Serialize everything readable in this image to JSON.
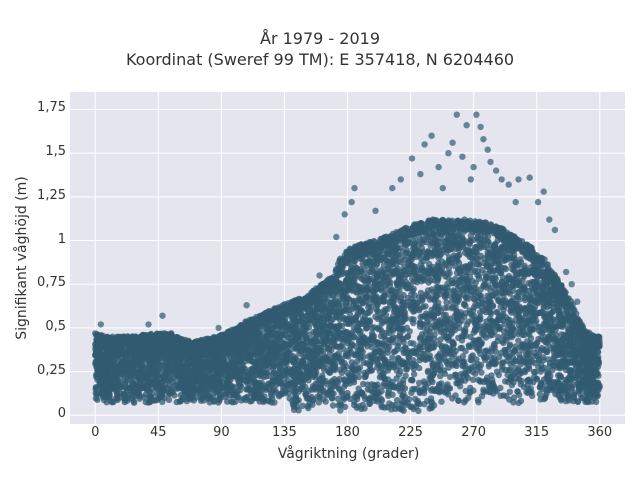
{
  "chart_data": {
    "type": "scatter",
    "title_lines": [
      "År 1979 - 2019",
      "Koordinat (Sweref 99 TM): E 357418, N 6204460"
    ],
    "xlabel": "Vågriktning (grader)",
    "ylabel": "Signifikant våghöjd (m)",
    "xlim": [
      -18,
      378
    ],
    "ylim": [
      -0.05,
      1.85
    ],
    "x_ticks": [
      0,
      45,
      90,
      135,
      180,
      225,
      270,
      315,
      360
    ],
    "x_tick_labels": [
      "0",
      "45",
      "90",
      "135",
      "180",
      "225",
      "270",
      "315",
      "360"
    ],
    "y_ticks": [
      0,
      0.25,
      0.5,
      0.75,
      1,
      1.25,
      1.5,
      1.75
    ],
    "y_tick_labels": [
      "0",
      "0,25",
      "0,5",
      "0,75",
      "1",
      "1,25",
      "1,5",
      "1,75"
    ],
    "grid": true,
    "marker_color": "#325b72",
    "background_color": "#e5e5ef",
    "upper_envelope": {
      "x": [
        0,
        10,
        20,
        30,
        45,
        55,
        60,
        70,
        80,
        90,
        100,
        110,
        120,
        130,
        140,
        150,
        160,
        170,
        175,
        180,
        190,
        200,
        210,
        220,
        230,
        240,
        250,
        260,
        270,
        280,
        290,
        300,
        310,
        320,
        330,
        340,
        345,
        350,
        360
      ],
      "y": [
        0.47,
        0.45,
        0.45,
        0.46,
        0.47,
        0.47,
        0.44,
        0.42,
        0.44,
        0.46,
        0.5,
        0.55,
        0.58,
        0.62,
        0.65,
        0.68,
        0.74,
        0.8,
        0.9,
        0.95,
        0.98,
        1.0,
        1.03,
        1.07,
        1.1,
        1.12,
        1.12,
        1.12,
        1.12,
        1.1,
        1.07,
        1.02,
        0.97,
        0.9,
        0.78,
        0.65,
        0.55,
        0.48,
        0.45
      ]
    },
    "lower_bound": 0.05,
    "outliers": [
      {
        "x": 4,
        "y": 0.52
      },
      {
        "x": 38,
        "y": 0.52
      },
      {
        "x": 48,
        "y": 0.57
      },
      {
        "x": 88,
        "y": 0.5
      },
      {
        "x": 108,
        "y": 0.63
      },
      {
        "x": 160,
        "y": 0.8
      },
      {
        "x": 172,
        "y": 1.02
      },
      {
        "x": 178,
        "y": 1.15
      },
      {
        "x": 183,
        "y": 1.22
      },
      {
        "x": 185,
        "y": 1.3
      },
      {
        "x": 200,
        "y": 1.17
      },
      {
        "x": 212,
        "y": 1.3
      },
      {
        "x": 218,
        "y": 1.35
      },
      {
        "x": 226,
        "y": 1.47
      },
      {
        "x": 232,
        "y": 1.38
      },
      {
        "x": 235,
        "y": 1.55
      },
      {
        "x": 240,
        "y": 1.6
      },
      {
        "x": 245,
        "y": 1.42
      },
      {
        "x": 248,
        "y": 1.3
      },
      {
        "x": 252,
        "y": 1.5
      },
      {
        "x": 255,
        "y": 1.56
      },
      {
        "x": 258,
        "y": 1.72
      },
      {
        "x": 262,
        "y": 1.48
      },
      {
        "x": 265,
        "y": 1.66
      },
      {
        "x": 268,
        "y": 1.35
      },
      {
        "x": 270,
        "y": 1.42
      },
      {
        "x": 272,
        "y": 1.72
      },
      {
        "x": 275,
        "y": 1.65
      },
      {
        "x": 277,
        "y": 1.58
      },
      {
        "x": 280,
        "y": 1.52
      },
      {
        "x": 282,
        "y": 1.45
      },
      {
        "x": 286,
        "y": 1.4
      },
      {
        "x": 290,
        "y": 1.35
      },
      {
        "x": 295,
        "y": 1.32
      },
      {
        "x": 300,
        "y": 1.22
      },
      {
        "x": 302,
        "y": 1.35
      },
      {
        "x": 310,
        "y": 1.36
      },
      {
        "x": 316,
        "y": 1.22
      },
      {
        "x": 320,
        "y": 1.28
      },
      {
        "x": 324,
        "y": 1.12
      },
      {
        "x": 328,
        "y": 1.06
      },
      {
        "x": 336,
        "y": 0.82
      },
      {
        "x": 340,
        "y": 0.75
      },
      {
        "x": 344,
        "y": 0.65
      }
    ]
  }
}
